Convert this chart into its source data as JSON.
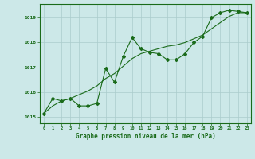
{
  "x": [
    0,
    1,
    2,
    3,
    4,
    5,
    6,
    7,
    8,
    9,
    10,
    11,
    12,
    13,
    14,
    15,
    16,
    17,
    18,
    19,
    20,
    21,
    22,
    23
  ],
  "y_line": [
    1015.15,
    1015.75,
    1015.65,
    1015.75,
    1015.45,
    1015.45,
    1015.55,
    1016.95,
    1016.4,
    1017.45,
    1018.2,
    1017.75,
    1017.6,
    1017.55,
    1017.3,
    1017.3,
    1017.55,
    1018.0,
    1018.25,
    1019.0,
    1019.2,
    1019.3,
    1019.25,
    1019.2
  ],
  "y_trend": [
    1015.15,
    1015.45,
    1015.65,
    1015.75,
    1015.9,
    1016.05,
    1016.25,
    1016.55,
    1016.75,
    1017.05,
    1017.35,
    1017.55,
    1017.65,
    1017.75,
    1017.85,
    1017.9,
    1018.0,
    1018.15,
    1018.3,
    1018.55,
    1018.8,
    1019.05,
    1019.2,
    1019.2
  ],
  "line_color": "#1a6b1a",
  "bg_color": "#cce8e8",
  "grid_color": "#aacccc",
  "xlabel": "Graphe pression niveau de la mer (hPa)",
  "ylim": [
    1014.75,
    1019.55
  ],
  "yticks": [
    1015,
    1016,
    1017,
    1018,
    1019
  ],
  "xticks": [
    0,
    1,
    2,
    3,
    4,
    5,
    6,
    7,
    8,
    9,
    10,
    11,
    12,
    13,
    14,
    15,
    16,
    17,
    18,
    19,
    20,
    21,
    22,
    23
  ]
}
